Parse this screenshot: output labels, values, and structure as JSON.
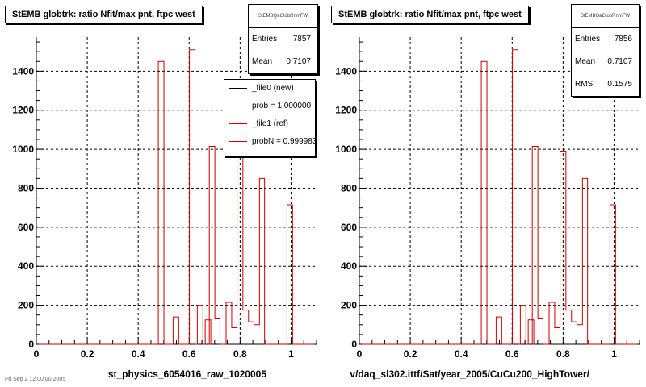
{
  "colors": {
    "new_line": "#000000",
    "ref_line": "#cc0000"
  },
  "pads": [
    {
      "title": "StEMB globtrk: ratio Nfit/max pnt, ftpc west",
      "xlabel": "st_physics_6054016_raw_1020005",
      "stats": {
        "name": "StEMBQaGlobRnmFW",
        "rows": [
          {
            "label": "Entries",
            "value": "7857"
          },
          {
            "label": "Mean",
            "value": "0.7107"
          }
        ]
      },
      "legend": [
        {
          "label": "_file0 (new)",
          "color": "#000000"
        },
        {
          "label": "prob = 1.000000",
          "color": "#000000"
        },
        {
          "label": "_file1 (ref)",
          "color": "#cc0000"
        },
        {
          "label": "probN = 0.999983",
          "color": "#cc0000"
        }
      ]
    },
    {
      "title": "StEMB globtrk: ratio Nfit/max pnt, ftpc west",
      "xlabel": "v/daq_sl302.ittf/Sat/year_2005/CuCu200_HighTower/",
      "stats": {
        "name": "StEMBQaGlobRnmFW",
        "rows": [
          {
            "label": "Entries",
            "value": "7856"
          },
          {
            "label": "Mean",
            "value": "0.7107"
          },
          {
            "label": "RMS",
            "value": "0.1575"
          }
        ]
      }
    }
  ],
  "footer": "Fri Sep  2 12:00:00 2005",
  "chart_data": [
    {
      "type": "bar",
      "title": "StEMB globtrk: ratio Nfit/max pnt, ftpc west",
      "xlabel": "st_physics_6054016_raw_1020005",
      "ylabel": "",
      "xlim": [
        0,
        1.1
      ],
      "ylim": [
        0,
        1575
      ],
      "xticks": [
        0,
        0.2,
        0.4,
        0.6,
        0.8,
        1
      ],
      "xtick_labels": [
        "0",
        "0.2",
        "0.4",
        "0.6",
        "0.8",
        "1"
      ],
      "yticks": [
        0,
        200,
        400,
        600,
        800,
        1000,
        1200,
        1400
      ],
      "ytick_labels": [
        "0",
        "200",
        "400",
        "600",
        "800",
        "1000",
        "1200",
        "1400"
      ],
      "grid": true,
      "bin_width": 0.022,
      "series": [
        {
          "name": "_file1 (ref)",
          "color": "#cc0000",
          "x": [
            0.49,
            0.548,
            0.612,
            0.643,
            0.674,
            0.69,
            0.71,
            0.756,
            0.777,
            0.8,
            0.822,
            0.843,
            0.865,
            0.885,
            0.995
          ],
          "values": [
            1450,
            140,
            1510,
            200,
            125,
            1015,
            130,
            215,
            85,
            990,
            175,
            115,
            100,
            850,
            715
          ]
        }
      ]
    },
    {
      "type": "bar",
      "title": "StEMB globtrk: ratio Nfit/max pnt, ftpc west",
      "xlabel": "v/daq_sl302.ittf/Sat/year_2005/CuCu200_HighTower/",
      "ylabel": "",
      "xlim": [
        0,
        1.1
      ],
      "ylim": [
        0,
        1575
      ],
      "xticks": [
        0,
        0.2,
        0.4,
        0.6,
        0.8,
        1
      ],
      "xtick_labels": [
        "0",
        "0.2",
        "0.4",
        "0.6",
        "0.8",
        "1"
      ],
      "yticks": [
        0,
        200,
        400,
        600,
        800,
        1000,
        1200,
        1400
      ],
      "ytick_labels": [
        "0",
        "200",
        "400",
        "600",
        "800",
        "1000",
        "1200",
        "1400"
      ],
      "grid": true,
      "bin_width": 0.022,
      "series": [
        {
          "name": "_file1 (ref)",
          "color": "#cc0000",
          "x": [
            0.49,
            0.548,
            0.612,
            0.643,
            0.674,
            0.69,
            0.71,
            0.756,
            0.777,
            0.8,
            0.822,
            0.843,
            0.865,
            0.885,
            0.995
          ],
          "values": [
            1450,
            140,
            1510,
            200,
            125,
            1015,
            130,
            215,
            85,
            990,
            175,
            115,
            100,
            850,
            715
          ]
        }
      ]
    }
  ]
}
